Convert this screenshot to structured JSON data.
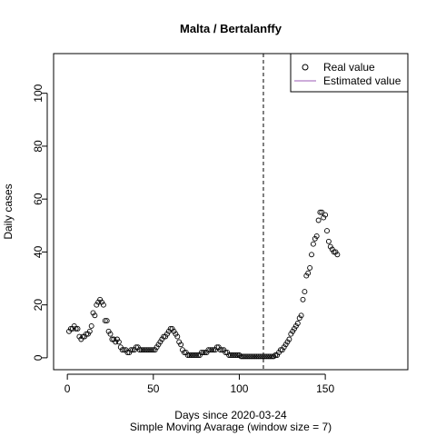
{
  "chart_data": {
    "type": "scatter",
    "title": "Malta / Bertalanffy",
    "xlabel": "Days since 2020-03-24",
    "xlabel2": "Simple Moving Avarage (window size = 7)",
    "ylabel": "Daily cases",
    "xlim": [
      -8,
      198
    ],
    "ylim": [
      -4.5,
      115
    ],
    "xticks": [
      0,
      50,
      100,
      150
    ],
    "yticks": [
      0,
      20,
      40,
      60,
      80,
      100
    ],
    "vline_x": 114,
    "legend_position": "top-right",
    "series": [
      {
        "name": "Real value",
        "marker": "open-circle",
        "color": "#000000",
        "points": [
          [
            1,
            10
          ],
          [
            2,
            11
          ],
          [
            3,
            11
          ],
          [
            4,
            12
          ],
          [
            5,
            11
          ],
          [
            6,
            11
          ],
          [
            7,
            8
          ],
          [
            8,
            7
          ],
          [
            9,
            8
          ],
          [
            10,
            8
          ],
          [
            11,
            9
          ],
          [
            12,
            9
          ],
          [
            13,
            10
          ],
          [
            14,
            12
          ],
          [
            15,
            17
          ],
          [
            16,
            16
          ],
          [
            17,
            20
          ],
          [
            18,
            21
          ],
          [
            19,
            22
          ],
          [
            20,
            21
          ],
          [
            21,
            20
          ],
          [
            22,
            14
          ],
          [
            23,
            14
          ],
          [
            24,
            10
          ],
          [
            25,
            9
          ],
          [
            26,
            7
          ],
          [
            27,
            7
          ],
          [
            28,
            6
          ],
          [
            29,
            7
          ],
          [
            30,
            6
          ],
          [
            31,
            4
          ],
          [
            32,
            3
          ],
          [
            33,
            3
          ],
          [
            34,
            3
          ],
          [
            35,
            2
          ],
          [
            36,
            2
          ],
          [
            37,
            3
          ],
          [
            38,
            3
          ],
          [
            39,
            3
          ],
          [
            40,
            4
          ],
          [
            41,
            4
          ],
          [
            42,
            3
          ],
          [
            43,
            3
          ],
          [
            44,
            3
          ],
          [
            45,
            3
          ],
          [
            46,
            3
          ],
          [
            47,
            3
          ],
          [
            48,
            3
          ],
          [
            49,
            3
          ],
          [
            50,
            3
          ],
          [
            51,
            3
          ],
          [
            52,
            4
          ],
          [
            53,
            5
          ],
          [
            54,
            6
          ],
          [
            55,
            7
          ],
          [
            56,
            8
          ],
          [
            57,
            8
          ],
          [
            58,
            9
          ],
          [
            59,
            10
          ],
          [
            60,
            11
          ],
          [
            61,
            11
          ],
          [
            62,
            10
          ],
          [
            63,
            9
          ],
          [
            64,
            8
          ],
          [
            65,
            6
          ],
          [
            66,
            5
          ],
          [
            67,
            3
          ],
          [
            68,
            2
          ],
          [
            69,
            2
          ],
          [
            70,
            1
          ],
          [
            71,
            1
          ],
          [
            72,
            1
          ],
          [
            73,
            1
          ],
          [
            74,
            1
          ],
          [
            75,
            1
          ],
          [
            76,
            1
          ],
          [
            77,
            1
          ],
          [
            78,
            2
          ],
          [
            79,
            2
          ],
          [
            80,
            2
          ],
          [
            81,
            2
          ],
          [
            82,
            3
          ],
          [
            83,
            3
          ],
          [
            84,
            3
          ],
          [
            85,
            3
          ],
          [
            86,
            3
          ],
          [
            87,
            4
          ],
          [
            88,
            4
          ],
          [
            89,
            3
          ],
          [
            90,
            3
          ],
          [
            91,
            3
          ],
          [
            92,
            2
          ],
          [
            93,
            2
          ],
          [
            94,
            1
          ],
          [
            95,
            1
          ],
          [
            96,
            1
          ],
          [
            97,
            1
          ],
          [
            98,
            1
          ],
          [
            99,
            1
          ],
          [
            100,
            1
          ],
          [
            101,
            0.5
          ],
          [
            102,
            0.5
          ],
          [
            103,
            0.5
          ],
          [
            104,
            0.5
          ],
          [
            105,
            0.5
          ],
          [
            106,
            0.5
          ],
          [
            107,
            0.5
          ],
          [
            108,
            0.5
          ],
          [
            109,
            0.5
          ],
          [
            110,
            0.5
          ],
          [
            111,
            0.5
          ],
          [
            112,
            0.5
          ],
          [
            113,
            0.5
          ],
          [
            114,
            0.5
          ],
          [
            115,
            0.5
          ],
          [
            116,
            0.5
          ],
          [
            117,
            0.5
          ],
          [
            118,
            0.5
          ],
          [
            119,
            0.5
          ],
          [
            120,
            0.5
          ],
          [
            121,
            1
          ],
          [
            122,
            1
          ],
          [
            123,
            2
          ],
          [
            124,
            3
          ],
          [
            125,
            3
          ],
          [
            126,
            4
          ],
          [
            127,
            5
          ],
          [
            128,
            6
          ],
          [
            129,
            7
          ],
          [
            130,
            9
          ],
          [
            131,
            10
          ],
          [
            132,
            11
          ],
          [
            133,
            12
          ],
          [
            134,
            13
          ],
          [
            135,
            15
          ],
          [
            136,
            16
          ],
          [
            137,
            22
          ],
          [
            138,
            25
          ],
          [
            139,
            31
          ],
          [
            140,
            32
          ],
          [
            141,
            34
          ],
          [
            142,
            39
          ],
          [
            143,
            43
          ],
          [
            144,
            45
          ],
          [
            145,
            46
          ],
          [
            146,
            52
          ],
          [
            147,
            55
          ],
          [
            148,
            55
          ],
          [
            149,
            53
          ],
          [
            150,
            54
          ],
          [
            151,
            48
          ],
          [
            152,
            44
          ],
          [
            153,
            42
          ],
          [
            154,
            41
          ],
          [
            155,
            40
          ],
          [
            156,
            40
          ],
          [
            157,
            39
          ]
        ]
      },
      {
        "name": "Estimated value",
        "marker": "line",
        "color": "#9b59b6",
        "points": []
      }
    ]
  }
}
